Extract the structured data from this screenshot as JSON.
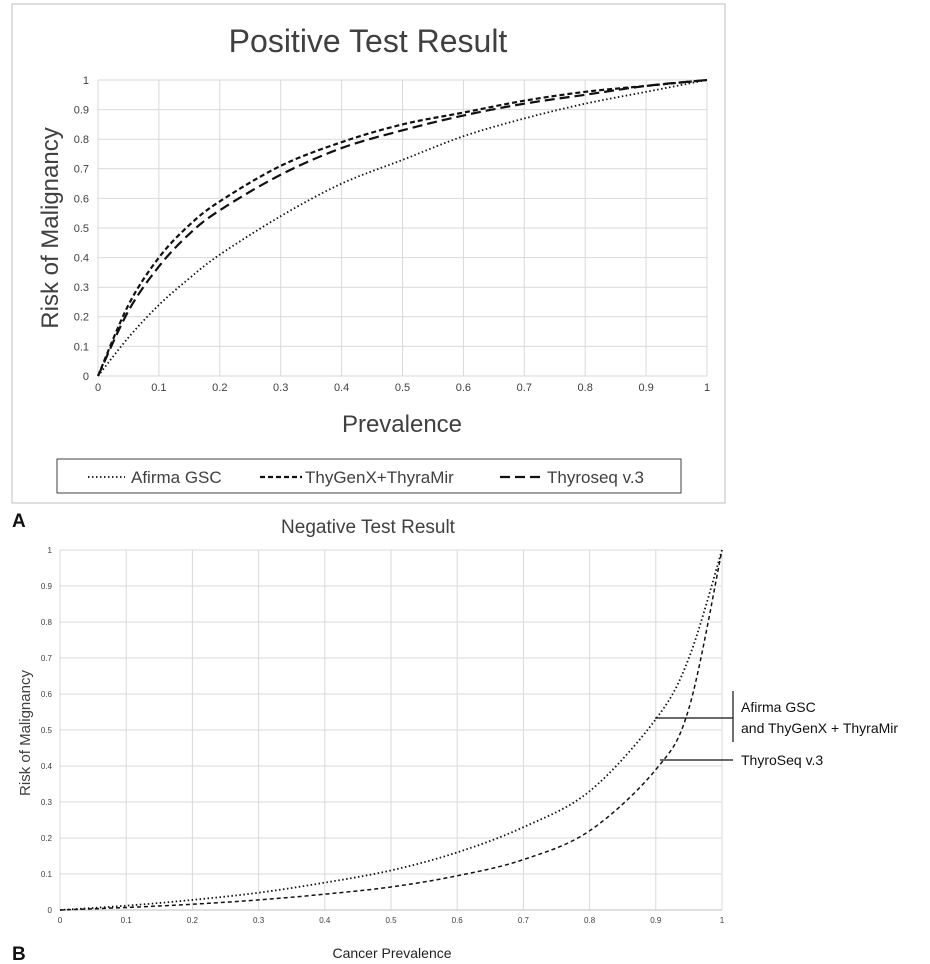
{
  "colors": {
    "line": "#111111",
    "grid": "#d9d9d9",
    "text": "#404040",
    "frame": "#bfbfbf"
  },
  "panel_labels": [
    "A",
    "B"
  ],
  "chart_data": [
    {
      "type": "line",
      "title": "Positive Test Result",
      "xlabel": "Prevalence",
      "ylabel": "Risk of Malignancy",
      "xlim": [
        0,
        1
      ],
      "ylim": [
        0,
        1
      ],
      "grid": true,
      "legend_position": "bottom",
      "x_ticks": [
        "0",
        "0.1",
        "0.2",
        "0.3",
        "0.4",
        "0.5",
        "0.6",
        "0.7",
        "0.8",
        "0.9",
        "1"
      ],
      "y_ticks": [
        "0",
        "0.1",
        "0.2",
        "0.3",
        "0.4",
        "0.5",
        "0.6",
        "0.7",
        "0.8",
        "0.9",
        "1"
      ],
      "x": [
        0,
        0.05,
        0.1,
        0.15,
        0.2,
        0.3,
        0.4,
        0.5,
        0.6,
        0.7,
        0.8,
        0.9,
        1
      ],
      "series": [
        {
          "name": "Afirma GSC",
          "style": "dotted",
          "values": [
            0,
            0.13,
            0.24,
            0.33,
            0.41,
            0.54,
            0.65,
            0.73,
            0.81,
            0.87,
            0.92,
            0.96,
            1
          ]
        },
        {
          "name": "ThyGenX+ThyraMir",
          "style": "short-dash",
          "values": [
            0,
            0.24,
            0.4,
            0.51,
            0.59,
            0.71,
            0.79,
            0.85,
            0.89,
            0.93,
            0.96,
            0.98,
            1
          ]
        },
        {
          "name": "Thyroseq v.3",
          "style": "long-dash",
          "values": [
            0,
            0.22,
            0.37,
            0.48,
            0.56,
            0.68,
            0.77,
            0.83,
            0.88,
            0.92,
            0.95,
            0.98,
            1
          ]
        }
      ]
    },
    {
      "type": "line",
      "title": "Negative Test Result",
      "xlabel": "Cancer Prevalence",
      "ylabel": "Risk of Malignancy",
      "xlim": [
        0,
        1
      ],
      "ylim": [
        0,
        1
      ],
      "grid": true,
      "x_ticks": [
        "0",
        "0.1",
        "0.2",
        "0.3",
        "0.4",
        "0.5",
        "0.6",
        "0.7",
        "0.8",
        "0.9",
        "1"
      ],
      "y_ticks": [
        "0",
        "0.1",
        "0.2",
        "0.3",
        "0.4",
        "0.5",
        "0.6",
        "0.7",
        "0.8",
        "0.9",
        "1"
      ],
      "x": [
        0,
        0.1,
        0.2,
        0.3,
        0.4,
        0.5,
        0.6,
        0.7,
        0.8,
        0.9,
        0.95,
        1
      ],
      "series": [
        {
          "style": "dotted",
          "values": [
            0,
            0.012,
            0.028,
            0.048,
            0.076,
            0.11,
            0.16,
            0.23,
            0.33,
            0.53,
            0.7,
            1
          ]
        },
        {
          "style": "dashed",
          "values": [
            0,
            0.007,
            0.016,
            0.028,
            0.044,
            0.064,
            0.095,
            0.14,
            0.22,
            0.39,
            0.56,
            1
          ]
        }
      ],
      "annotations": [
        {
          "lines": [
            "Afirma GSC",
            "and ThyGenX + ThyraMir"
          ]
        },
        {
          "lines": [
            "ThyroSeq v.3"
          ]
        }
      ]
    }
  ]
}
